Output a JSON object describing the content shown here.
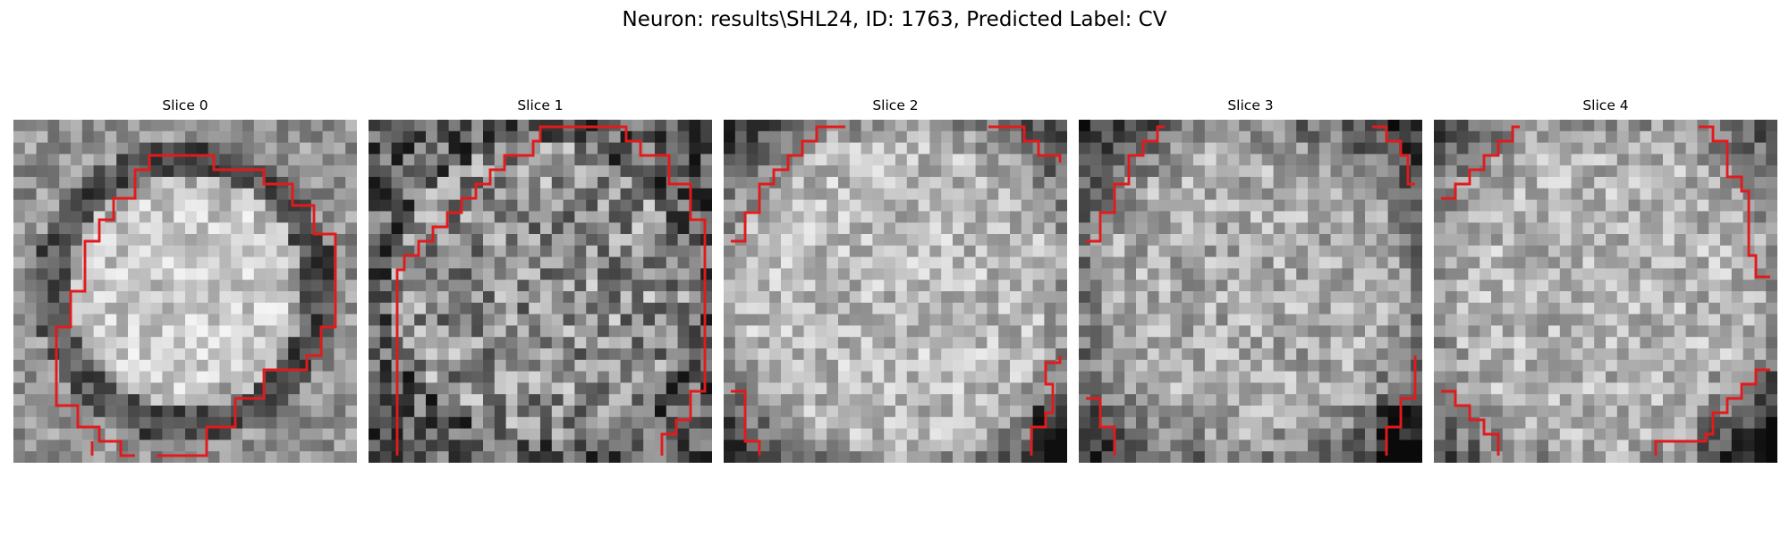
{
  "figure": {
    "title": "Neuron: results\\SHL24, ID: 1763, Predicted Label: CV"
  },
  "slices": [
    {
      "title": "Slice 0",
      "seed": 11,
      "style": "ring"
    },
    {
      "title": "Slice 1",
      "seed": 23,
      "style": "dark-noisy"
    },
    {
      "title": "Slice 2",
      "seed": 37,
      "style": "bright"
    },
    {
      "title": "Slice 3",
      "seed": 41,
      "style": "medium"
    },
    {
      "title": "Slice 4",
      "seed": 59,
      "style": "bright-dark-corner"
    }
  ],
  "colors": {
    "contour": "#e31a1c",
    "background": "#ffffff"
  },
  "icons": []
}
